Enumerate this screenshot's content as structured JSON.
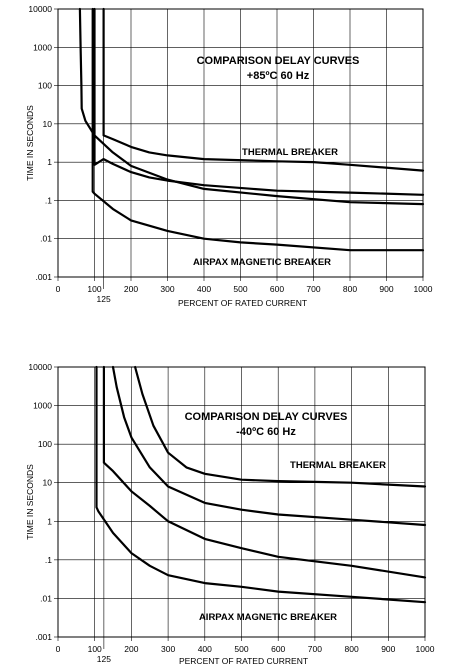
{
  "chart_data": [
    {
      "type": "line",
      "title": "COMPARISON DELAY CURVES",
      "subtitle": "+85ºC  60 Hz",
      "xlabel": "PERCENT OF RATED CURRENT",
      "ylabel": "TIME IN SECONDS",
      "xlim": [
        0,
        1000
      ],
      "ylim": [
        0.001,
        10000
      ],
      "y_scale": "log",
      "grid": true,
      "x_ticks": [
        "0",
        "100",
        "200",
        "300",
        "400",
        "500",
        "600",
        "700",
        "800",
        "900",
        "1000"
      ],
      "x_extra_tick": "125",
      "y_ticks": [
        ".001",
        ".01",
        ".1",
        "1",
        "10",
        "100",
        "1000",
        "10000"
      ],
      "annotations": [
        {
          "text": "THERMAL BREAKER",
          "x": 470,
          "y": 2.2
        },
        {
          "text": "AIRPAX MAGNETIC BREAKER",
          "x": 330,
          "y": 0.0014
        }
      ],
      "series": [
        {
          "x": [
            60,
            62,
            64,
            65,
            75,
            100,
            150,
            200,
            300,
            400,
            600,
            800,
            1000
          ],
          "y": [
            10000,
            1000,
            100,
            25,
            12,
            5,
            1.8,
            0.8,
            0.35,
            0.2,
            0.13,
            0.09,
            0.08
          ]
        },
        {
          "x": [
            95,
            95,
            100,
            150,
            200,
            300,
            400,
            500,
            600,
            800,
            1000
          ],
          "y": [
            10000,
            0.17,
            0.15,
            0.06,
            0.03,
            0.016,
            0.01,
            0.008,
            0.007,
            0.005,
            0.005
          ]
        },
        {
          "x": [
            100,
            100,
            125,
            150,
            200,
            250,
            300,
            400,
            600,
            800,
            1000
          ],
          "y": [
            10000,
            0.85,
            1.2,
            0.9,
            0.55,
            0.4,
            0.33,
            0.25,
            0.18,
            0.16,
            0.14
          ]
        },
        {
          "x": [
            125,
            125,
            150,
            200,
            250,
            300,
            400,
            600,
            700,
            800,
            1000
          ],
          "y": [
            10000,
            5,
            4,
            2.5,
            1.8,
            1.5,
            1.2,
            1.05,
            1,
            0.85,
            0.6
          ]
        }
      ]
    },
    {
      "type": "line",
      "title": "COMPARISON DELAY CURVES",
      "subtitle": "-40ºC  60 Hz",
      "xlabel": "PERCENT OF RATED CURRENT",
      "ylabel": "TIME IN SECONDS",
      "xlim": [
        0,
        1000
      ],
      "ylim": [
        0.001,
        10000
      ],
      "y_scale": "log",
      "grid": true,
      "x_ticks": [
        "0",
        "100",
        "200",
        "300",
        "400",
        "500",
        "600",
        "700",
        "800",
        "900",
        "1000"
      ],
      "x_extra_tick": "125",
      "y_ticks": [
        ".001",
        ".01",
        ".1",
        "1",
        "10",
        "100",
        "1000",
        "10000"
      ],
      "annotations": [
        {
          "text": "THERMAL BREAKER",
          "x": 570,
          "y": 17
        },
        {
          "text": "AIRPAX MAGNETIC BREAKER",
          "x": 330,
          "y": 0.0045
        }
      ],
      "series": [
        {
          "x": [
            105,
            105,
            110,
            150,
            200,
            250,
            300,
            400,
            500,
            600,
            800,
            1000
          ],
          "y": [
            10000,
            2.3,
            1.8,
            0.5,
            0.15,
            0.07,
            0.04,
            0.025,
            0.02,
            0.015,
            0.011,
            0.008
          ]
        },
        {
          "x": [
            125,
            125,
            150,
            200,
            250,
            300,
            400,
            500,
            600,
            800,
            1000
          ],
          "y": [
            10000,
            33,
            20,
            6,
            2.5,
            1,
            0.35,
            0.2,
            0.12,
            0.07,
            0.035
          ]
        },
        {
          "x": [
            150,
            160,
            180,
            200,
            250,
            300,
            400,
            500,
            600,
            800,
            1000
          ],
          "y": [
            10000,
            3000,
            500,
            150,
            25,
            8,
            3,
            2,
            1.5,
            1.1,
            0.8
          ]
        },
        {
          "x": [
            210,
            230,
            260,
            300,
            350,
            400,
            500,
            600,
            700,
            800,
            1000
          ],
          "y": [
            10000,
            2000,
            300,
            60,
            25,
            17,
            12,
            11,
            10.5,
            10,
            8
          ]
        }
      ]
    }
  ]
}
